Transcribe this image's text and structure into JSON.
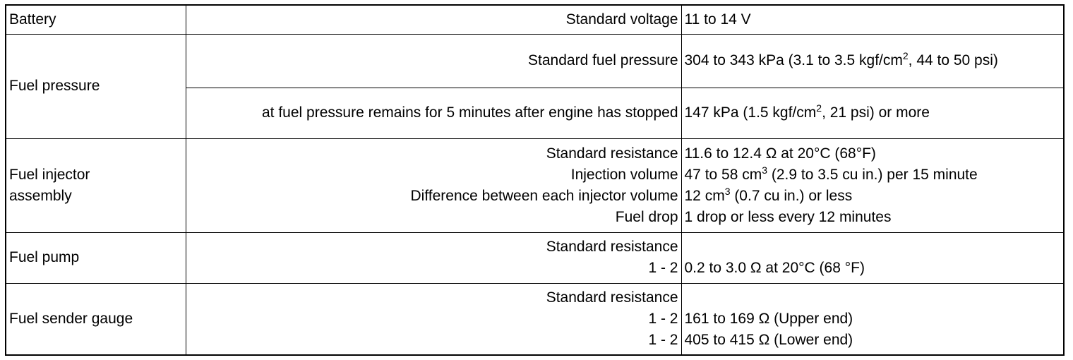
{
  "table": {
    "rows": [
      {
        "item": [
          "Battery"
        ],
        "specs": [
          {
            "labels": [
              "Standard voltage"
            ],
            "values": [
              [
                "11 to 14 V"
              ]
            ]
          }
        ]
      },
      {
        "item": [
          "Fuel pressure"
        ],
        "specs": [
          {
            "labels": [
              "Standard fuel pressure"
            ],
            "values": [
              [
                "304 to 343 kPa (3.1 to 3.5 kgf/cm",
                "2",
                ", 44 to 50 psi)"
              ]
            ]
          },
          {
            "labels": [
              "at fuel pressure remains for 5 minutes after engine has stopped"
            ],
            "values": [
              [
                "147 kPa (1.5 kgf/cm",
                "2",
                ", 21 psi) or more"
              ]
            ]
          }
        ]
      },
      {
        "item": [
          "Fuel injector",
          "assembly"
        ],
        "specs": [
          {
            "labels": [
              "Standard resistance",
              "Injection volume",
              "Difference between each injector volume",
              "Fuel drop"
            ],
            "values": [
              [
                "11.6 to 12.4 Ω at 20°C (68°F)"
              ],
              [
                "47 to 58 cm",
                "3",
                " (2.9 to 3.5 cu in.) per 15 minute"
              ],
              [
                "12 cm",
                "3",
                " (0.7 cu in.) or less"
              ],
              [
                "1 drop or less every 12 minutes"
              ]
            ]
          }
        ]
      },
      {
        "item": [
          "Fuel pump"
        ],
        "specs": [
          {
            "labels": [
              "Standard resistance",
              "1 - 2"
            ],
            "values": [
              [
                "0.2 to 3.0 Ω at 20°C (68 °F)"
              ]
            ]
          }
        ]
      },
      {
        "item": [
          "Fuel sender gauge"
        ],
        "specs": [
          {
            "labels": [
              "Standard resistance",
              "1 - 2",
              "1 - 2"
            ],
            "values": [
              [
                "161 to 169 Ω (Upper end)"
              ],
              [
                "405 to 415 Ω (Lower end)"
              ]
            ]
          }
        ]
      }
    ]
  }
}
